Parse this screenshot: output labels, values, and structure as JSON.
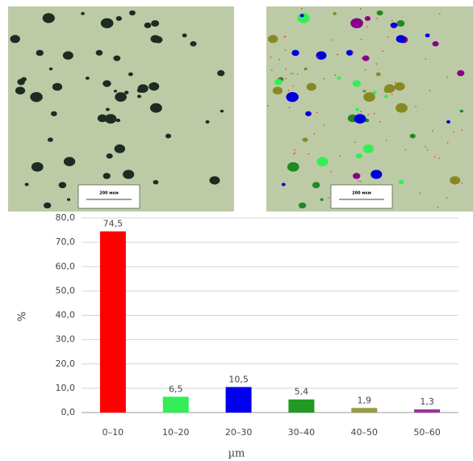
{
  "micrographs": {
    "scale_labels": [
      "200 мкм",
      "200 мкм"
    ]
  },
  "chart_data": {
    "type": "bar",
    "y_label": "%",
    "x_label": "µm",
    "categories": [
      "0–10",
      "10–20",
      "20–30",
      "30–40",
      "40–50",
      "50–60"
    ],
    "values": [
      74.5,
      6.5,
      10.5,
      5.4,
      1.9,
      1.3
    ],
    "value_labels": [
      "74,5",
      "6,5",
      "10,5",
      "5,4",
      "1,9",
      "1,3"
    ],
    "colors": [
      "#ff0000",
      "#33ee55",
      "#0000ee",
      "#229922",
      "#999944",
      "#993399"
    ],
    "ylim": [
      0,
      80
    ],
    "yticks": [
      {
        "value": 0,
        "label": "0,0"
      },
      {
        "value": 10,
        "label": "10,0"
      },
      {
        "value": 20,
        "label": "20,0"
      },
      {
        "value": 30,
        "label": "30,0"
      },
      {
        "value": 40,
        "label": "40,0"
      },
      {
        "value": 50,
        "label": "50,0"
      },
      {
        "value": 60,
        "label": "60,0"
      },
      {
        "value": 70,
        "label": "70,0"
      },
      {
        "value": 80,
        "label": "80,0"
      }
    ],
    "grid": true
  }
}
